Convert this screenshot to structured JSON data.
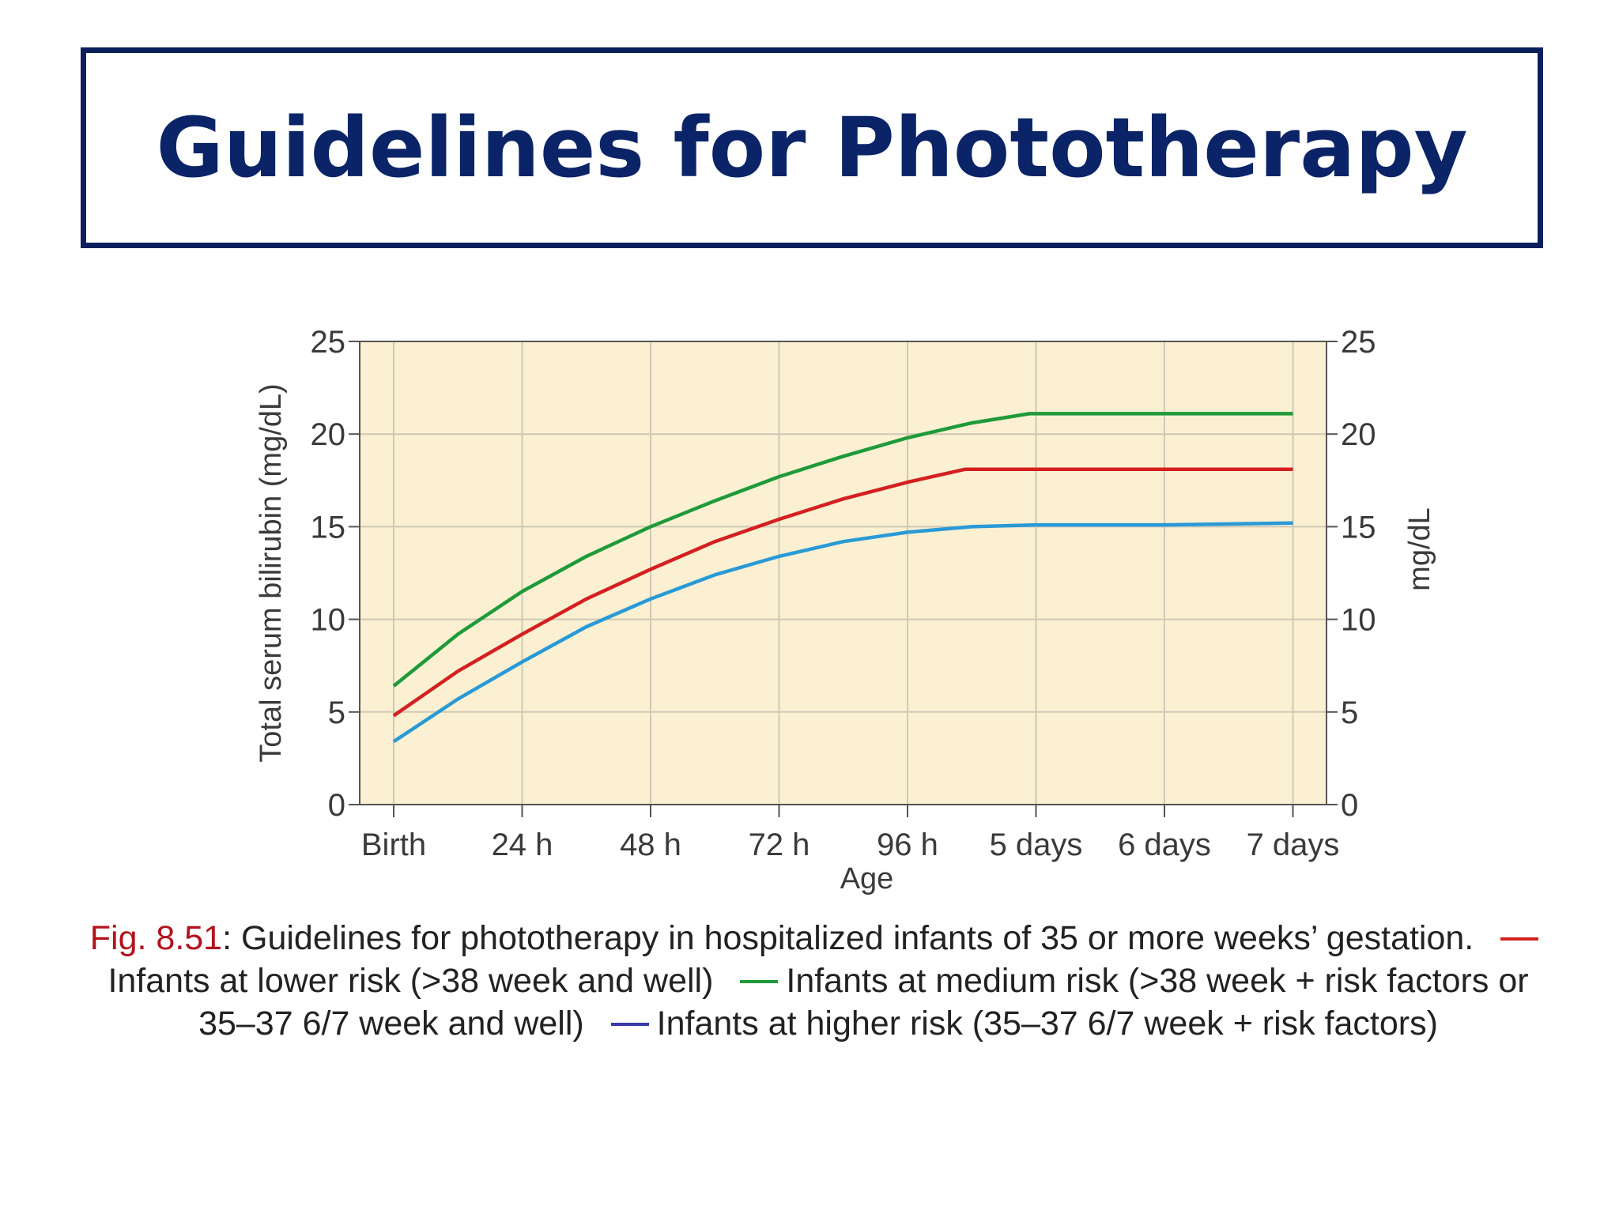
{
  "slide": {
    "title": "Guidelines for Phototherapy"
  },
  "caption": {
    "fig_label": "Fig. 8.51",
    "intro": ": Guidelines for phototherapy in hospitalized infants of 35 or more weeks’ gestation.",
    "lower": "Infants at lower risk (>38 week and well)",
    "medium": "Infants at medium risk (>38 week + risk factors or 35–37 6/7 week and well)",
    "higher": "Infants at higher risk (35–37 6/7 week + risk factors)"
  },
  "chart_data": {
    "type": "line",
    "categories": [
      "Birth",
      "24 h",
      "48 h",
      "72 h",
      "96 h",
      "5 days",
      "6 days",
      "7 days"
    ],
    "xlabel": "Age",
    "ylabel": "Total serum bilirubin (mg/dL)",
    "y2label": "mg/dL",
    "ylim": [
      0,
      25
    ],
    "yticks": [
      0,
      5,
      10,
      15,
      20,
      25
    ],
    "grid": true,
    "background": "#fbf1d2",
    "series": [
      {
        "key": "medium",
        "color": "#1f9a3a",
        "x": [
          0,
          0.5,
          1,
          1.5,
          2,
          2.5,
          3,
          3.5,
          4,
          4.5,
          4.95,
          7
        ],
        "values": [
          6.4,
          9.2,
          11.5,
          13.4,
          15.0,
          16.4,
          17.7,
          18.8,
          19.8,
          20.6,
          21.1,
          21.1
        ]
      },
      {
        "key": "lower",
        "color": "#d42020",
        "x": [
          0,
          0.5,
          1,
          1.5,
          2,
          2.5,
          3,
          3.5,
          4,
          4.45,
          7
        ],
        "values": [
          4.8,
          7.2,
          9.2,
          11.1,
          12.7,
          14.2,
          15.4,
          16.5,
          17.4,
          18.1,
          18.1
        ]
      },
      {
        "key": "higher",
        "color": "#2a9ad6",
        "x": [
          0,
          0.5,
          1,
          1.5,
          2,
          2.5,
          3,
          3.5,
          4,
          4.5,
          5,
          6,
          7
        ],
        "values": [
          3.4,
          5.7,
          7.7,
          9.6,
          11.1,
          12.4,
          13.4,
          14.2,
          14.7,
          15.0,
          15.1,
          15.1,
          15.2
        ]
      }
    ]
  }
}
